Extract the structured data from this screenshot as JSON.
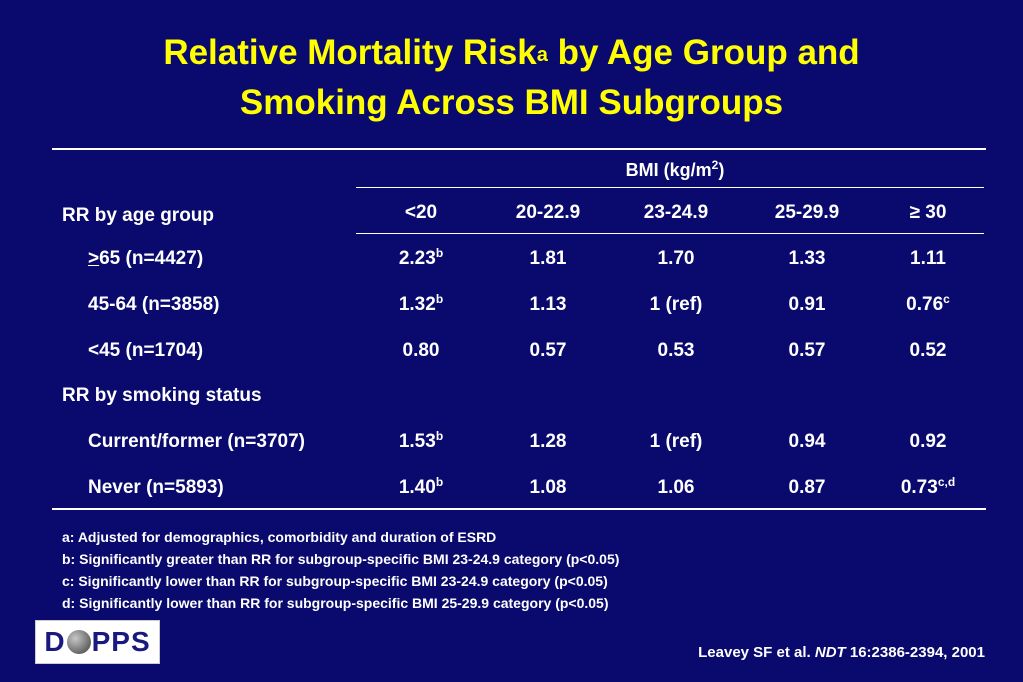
{
  "title": {
    "line1_main": "Relative Mortality Risk",
    "line1_sup": "a",
    "line1_rest": " by Age Group and",
    "line2": "Smoking Across BMI Subgroups"
  },
  "table": {
    "bmi_header_main": "BMI (kg/m",
    "bmi_header_sup": "2",
    "bmi_header_close": ")",
    "section_age": "RR by age group",
    "section_smoking": "RR by smoking status",
    "columns": [
      "<20",
      "20-22.9",
      "23-24.9",
      "25-29.9",
      "≥ 30"
    ],
    "rows": [
      {
        "label": "65 (n=4427)",
        "label_prefix": ">",
        "cells": [
          {
            "v": "2.23",
            "sup": "b"
          },
          {
            "v": "1.81",
            "sup": ""
          },
          {
            "v": "1.70",
            "sup": ""
          },
          {
            "v": "1.33",
            "sup": ""
          },
          {
            "v": "1.11",
            "sup": ""
          }
        ]
      },
      {
        "label": "45-64 (n=3858)",
        "label_prefix": "",
        "cells": [
          {
            "v": "1.32",
            "sup": "b"
          },
          {
            "v": "1.13",
            "sup": ""
          },
          {
            "v": "1 (ref)",
            "sup": ""
          },
          {
            "v": "0.91",
            "sup": ""
          },
          {
            "v": "0.76",
            "sup": "c"
          }
        ]
      },
      {
        "label": "<45 (n=1704)",
        "label_prefix": "",
        "cells": [
          {
            "v": "0.80",
            "sup": ""
          },
          {
            "v": "0.57",
            "sup": ""
          },
          {
            "v": "0.53",
            "sup": ""
          },
          {
            "v": "0.57",
            "sup": ""
          },
          {
            "v": "0.52",
            "sup": ""
          }
        ]
      },
      {
        "label": "Current/former (n=3707)",
        "label_prefix": "",
        "cells": [
          {
            "v": "1.53",
            "sup": "b"
          },
          {
            "v": "1.28",
            "sup": ""
          },
          {
            "v": "1 (ref)",
            "sup": ""
          },
          {
            "v": "0.94",
            "sup": ""
          },
          {
            "v": "0.92",
            "sup": ""
          }
        ]
      },
      {
        "label": "Never (n=5893)",
        "label_prefix": "",
        "cells": [
          {
            "v": "1.40",
            "sup": "b"
          },
          {
            "v": "1.08",
            "sup": ""
          },
          {
            "v": "1.06",
            "sup": ""
          },
          {
            "v": "0.87",
            "sup": ""
          },
          {
            "v": "0.73",
            "sup": "c,d"
          }
        ]
      }
    ]
  },
  "footnotes": [
    "a: Adjusted for demographics, comorbidity and duration of ESRD",
    "b: Significantly greater than RR for subgroup-specific BMI 23-24.9 category (p<0.05)",
    "c: Significantly lower than RR for subgroup-specific BMI 23-24.9 category (p<0.05)",
    "d: Significantly lower than RR for subgroup-specific BMI 25-29.9 category (p<0.05)"
  ],
  "logo": {
    "left": "D",
    "right": "PPS"
  },
  "citation": {
    "authors": "Leavey SF et al. ",
    "journal": "NDT",
    "ref": " 16:2386-2394, 2001"
  },
  "colors": {
    "background": "#0a0a6e",
    "title": "#ffff00",
    "text": "#ffffff"
  }
}
